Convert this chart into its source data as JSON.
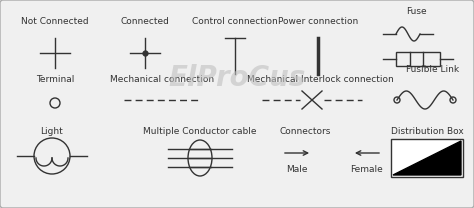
{
  "bg_color": "#f0f0f0",
  "border_color": "#aaaaaa",
  "line_color": "#333333",
  "text_color": "#333333",
  "watermark_color": "#c0c0c0",
  "watermark_text": "ElProCus",
  "labels": {
    "not_connected": "Not Connected",
    "connected": "Connected",
    "control_connection": "Control connection",
    "power_connection": "Power connection",
    "fuse": "Fuse",
    "fusible_link": "Fusible Link",
    "terminal": "Terminal",
    "mechanical_connection": "Mechanical connection",
    "mechanical_interlock": "Mechanical Interlock connection",
    "light": "Light",
    "multiple_conductor": "Multiple Conductor cable",
    "connectors": "Connectors",
    "male": "Male",
    "female": "Female",
    "distribution_box": "Distribution Box"
  },
  "figsize": [
    4.74,
    2.08
  ],
  "dpi": 100
}
